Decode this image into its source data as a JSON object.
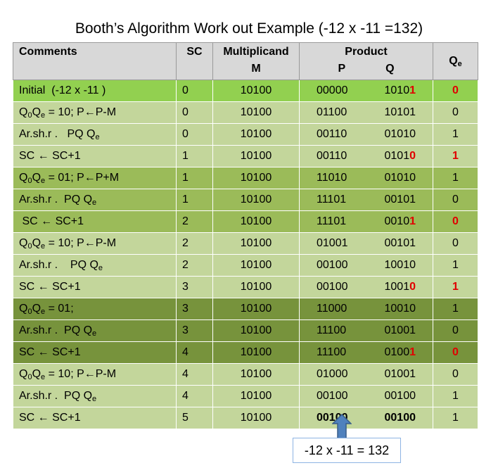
{
  "title": "Booth’s Algorithm Work out  Example (-12 x -11 =132)",
  "headers": {
    "comments": "Comments",
    "sc": "SC",
    "multiplicand": "Multiplicand",
    "multiplicand_sub": "M",
    "product": "Product",
    "product_p": "P",
    "product_q": "Q",
    "qe": "Qe"
  },
  "colors": {
    "bright": "#92d050",
    "light": "#c3d69b",
    "mid": "#9bbb59",
    "dark": "#77933c",
    "header": "#d8d8d8",
    "highlight": "#e00000"
  },
  "rows": [
    {
      "comment": "Initial  (-12 x -11 )",
      "sc": "0",
      "m": "10100",
      "p": "00000",
      "q": "10101",
      "qe": "0",
      "shade": "bright",
      "q_hl": true,
      "qe_hl": true
    },
    {
      "comment": "Q0Qe = 10; P←P-M",
      "sc": "0",
      "m": "10100",
      "p": "01100",
      "q": "10101",
      "qe": "0",
      "shade": "light"
    },
    {
      "comment": "Ar.sh.r .   PQ Qe",
      "sc": "0",
      "m": "10100",
      "p": "00110",
      "q": "01010",
      "qe": "1",
      "shade": "light"
    },
    {
      "comment": "SC ← SC+1",
      "sc": "1",
      "m": "10100",
      "p": "00110",
      "q": "01010",
      "qe": "1",
      "shade": "light",
      "q_hl": true,
      "qe_hl": true
    },
    {
      "comment": "Q0Qe = 01; P←P+M",
      "sc": "1",
      "m": "10100",
      "p": "11010",
      "q": "01010",
      "qe": "1",
      "shade": "mid"
    },
    {
      "comment": "Ar.sh.r .  PQ Qe",
      "sc": "1",
      "m": "10100",
      "p": "11101",
      "q": "00101",
      "qe": "0",
      "shade": "mid"
    },
    {
      "comment": " SC ← SC+1",
      "sc": "2",
      "m": "10100",
      "p": "11101",
      "q": "00101",
      "qe": "0",
      "shade": "mid",
      "q_hl": true,
      "qe_hl": true
    },
    {
      "comment": "Q0Qe = 10; P←P-M",
      "sc": "2",
      "m": "10100",
      "p": "01001",
      "q": "00101",
      "qe": "0",
      "shade": "light"
    },
    {
      "comment": "Ar.sh.r .    PQ Qe",
      "sc": "2",
      "m": "10100",
      "p": "00100",
      "q": "10010",
      "qe": "1",
      "shade": "light"
    },
    {
      "comment": "SC ← SC+1",
      "sc": "3",
      "m": "10100",
      "p": "00100",
      "q": "10010",
      "qe": "1",
      "shade": "light",
      "q_hl": true,
      "qe_hl": true
    },
    {
      "comment": "Q0Qe = 01;",
      "sc": "3",
      "m": "10100",
      "p": "11000",
      "q": "10010",
      "qe": "1",
      "shade": "dark"
    },
    {
      "comment": "Ar.sh.r .  PQ Qe",
      "sc": "3",
      "m": "10100",
      "p": "11100",
      "q": "01001",
      "qe": "0",
      "shade": "dark"
    },
    {
      "comment": "SC ← SC+1",
      "sc": "4",
      "m": "10100",
      "p": "11100",
      "q": "01001",
      "qe": "0",
      "shade": "dark",
      "q_hl": true,
      "qe_hl": true
    },
    {
      "comment": "Q0Qe = 10; P←P-M",
      "sc": "4",
      "m": "10100",
      "p": "01000",
      "q": "01001",
      "qe": "0",
      "shade": "light"
    },
    {
      "comment": "Ar.sh.r .  PQ Qe",
      "sc": "4",
      "m": "10100",
      "p": "00100",
      "q": "00100",
      "qe": "1",
      "shade": "light"
    },
    {
      "comment": "SC ← SC+1",
      "sc": "5",
      "m": "10100",
      "p": "00100",
      "q": "00100",
      "qe": "1",
      "shade": "light",
      "pq_bold": true
    }
  ],
  "result": "-12 x -11 = 132"
}
